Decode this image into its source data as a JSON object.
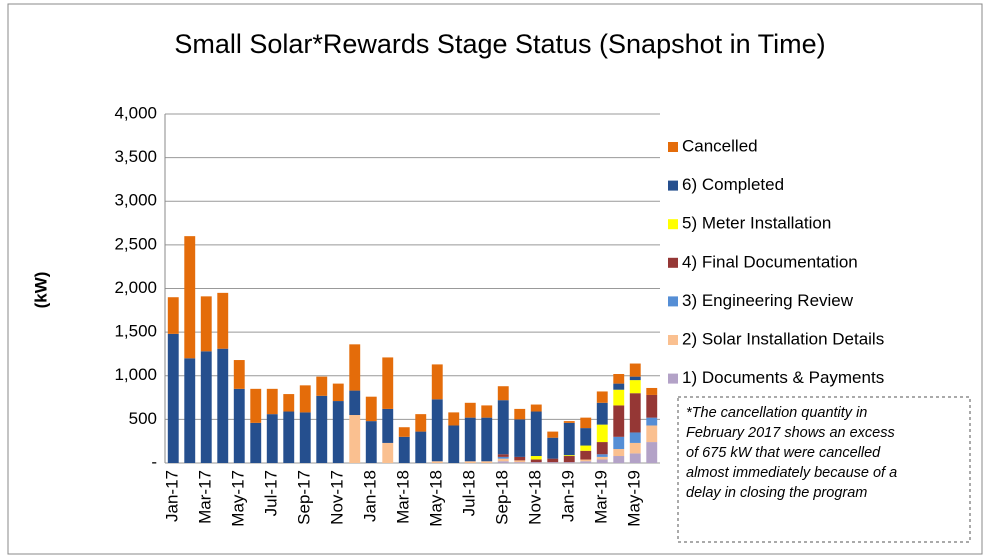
{
  "chart_data": {
    "type": "stacked_bar",
    "title": "Small Solar*Rewards Stage Status (Snapshot in Time)",
    "y_label": "(kW)",
    "categories": [
      "Jan-17",
      null,
      "Mar-17",
      null,
      "May-17",
      null,
      "Jul-17",
      null,
      "Sep-17",
      null,
      "Nov-17",
      null,
      "Jan-18",
      null,
      "Mar-18",
      null,
      "May-18",
      null,
      "Jul-18",
      null,
      "Sep-18",
      null,
      "Nov-18",
      null,
      "Jan-19",
      null,
      "Mar-19",
      null,
      "May-19",
      null
    ],
    "ylim": [
      0,
      4000
    ],
    "yticks": [
      {
        "value": 0,
        "label": "-"
      },
      {
        "value": 500,
        "label": "500"
      },
      {
        "value": 1000,
        "label": "1,000"
      },
      {
        "value": 1500,
        "label": "1,500"
      },
      {
        "value": 2000,
        "label": "2,000"
      },
      {
        "value": 2500,
        "label": "2,500"
      },
      {
        "value": 3000,
        "label": "3,000"
      },
      {
        "value": 3500,
        "label": "3,500"
      },
      {
        "value": 4000,
        "label": "4,000"
      }
    ],
    "grid": true,
    "legend": "right",
    "series": [
      {
        "name": "1) Documents & Payments",
        "color": "#b3a2c7",
        "values": [
          0,
          0,
          0,
          0,
          0,
          0,
          0,
          0,
          0,
          0,
          0,
          0,
          0,
          0,
          0,
          0,
          0,
          0,
          0,
          0,
          20,
          10,
          10,
          10,
          10,
          20,
          40,
          80,
          110,
          240
        ]
      },
      {
        "name": "2) Solar Installation Details",
        "color": "#fac090",
        "values": [
          0,
          0,
          0,
          0,
          0,
          0,
          0,
          0,
          0,
          0,
          0,
          550,
          0,
          230,
          0,
          0,
          20,
          0,
          20,
          20,
          30,
          20,
          0,
          0,
          0,
          20,
          30,
          80,
          120,
          190
        ]
      },
      {
        "name": "3) Engineering Review",
        "color": "#558ed5",
        "values": [
          0,
          0,
          0,
          0,
          0,
          0,
          0,
          0,
          0,
          0,
          0,
          0,
          0,
          0,
          0,
          0,
          0,
          0,
          0,
          0,
          20,
          0,
          0,
          0,
          0,
          0,
          30,
          140,
          120,
          90
        ]
      },
      {
        "name": "4) Final Documentation",
        "color": "#953735",
        "values": [
          0,
          0,
          0,
          0,
          0,
          0,
          0,
          0,
          0,
          0,
          0,
          0,
          0,
          0,
          0,
          0,
          0,
          0,
          0,
          0,
          30,
          40,
          30,
          40,
          70,
          100,
          140,
          360,
          450,
          260
        ]
      },
      {
        "name": "5) Meter Installation",
        "color": "#ffff00",
        "values": [
          0,
          0,
          0,
          0,
          0,
          0,
          0,
          0,
          0,
          0,
          0,
          0,
          0,
          0,
          0,
          0,
          0,
          0,
          0,
          0,
          0,
          0,
          40,
          0,
          10,
          60,
          200,
          180,
          150,
          0
        ]
      },
      {
        "name": "6) Completed",
        "color": "#254f8e",
        "values": [
          1480,
          1200,
          1280,
          1310,
          850,
          460,
          560,
          590,
          580,
          770,
          710,
          280,
          480,
          390,
          300,
          360,
          710,
          430,
          500,
          500,
          620,
          430,
          510,
          240,
          370,
          200,
          250,
          70,
          40,
          0
        ]
      },
      {
        "name": "Cancelled",
        "color": "#e46c0a",
        "values": [
          420,
          1400,
          630,
          640,
          330,
          390,
          290,
          200,
          310,
          220,
          200,
          530,
          280,
          590,
          110,
          200,
          400,
          150,
          170,
          140,
          160,
          120,
          80,
          70,
          20,
          120,
          130,
          110,
          150,
          80
        ]
      }
    ],
    "annotation": [
      "*The cancellation quantity in",
      "February 2017 shows an excess",
      "of 675 kW that were cancelled",
      "almost immediately because of a",
      "delay in closing the program"
    ]
  }
}
